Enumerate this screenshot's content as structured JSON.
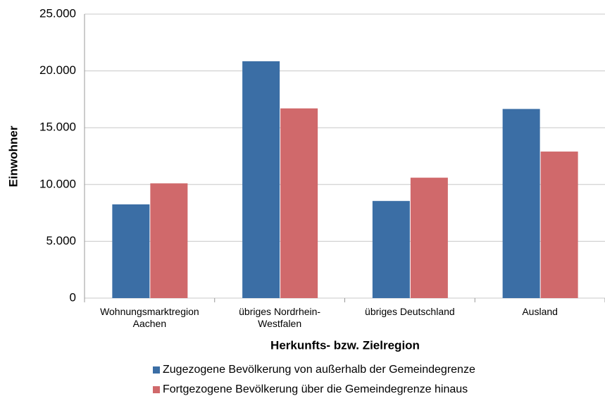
{
  "chart_data": {
    "type": "bar",
    "x_label": "Herkunfts- bzw. Zielregion",
    "y_label": "Einwohner",
    "categories": [
      "Wohnungsmarktregion Aachen",
      "übriges Nordrhein-Westfalen",
      "übriges Deutschland",
      "Ausland"
    ],
    "series": [
      {
        "name": "Zugezogene Bevölkerung von außerhalb der Gemeindegrenze",
        "color": "#3b6ea5",
        "values": [
          8250,
          20850,
          8550,
          16650
        ]
      },
      {
        "name": "Fortgezogene Bevölkerung über die Gemeindegrenze hinaus",
        "color": "#d0696b",
        "values": [
          10100,
          16700,
          10600,
          12900
        ]
      }
    ],
    "ylim": [
      0,
      25000
    ],
    "yticks": [
      0,
      {
        "value": 5000,
        "label": "5.000"
      },
      {
        "value": 10000,
        "label": "10.000"
      },
      {
        "value": 15000,
        "label": "15.000"
      },
      {
        "value": 20000,
        "label": "20.000"
      },
      {
        "value": 25000,
        "label": "25.000"
      }
    ],
    "grid": true,
    "legend": "bottom"
  }
}
